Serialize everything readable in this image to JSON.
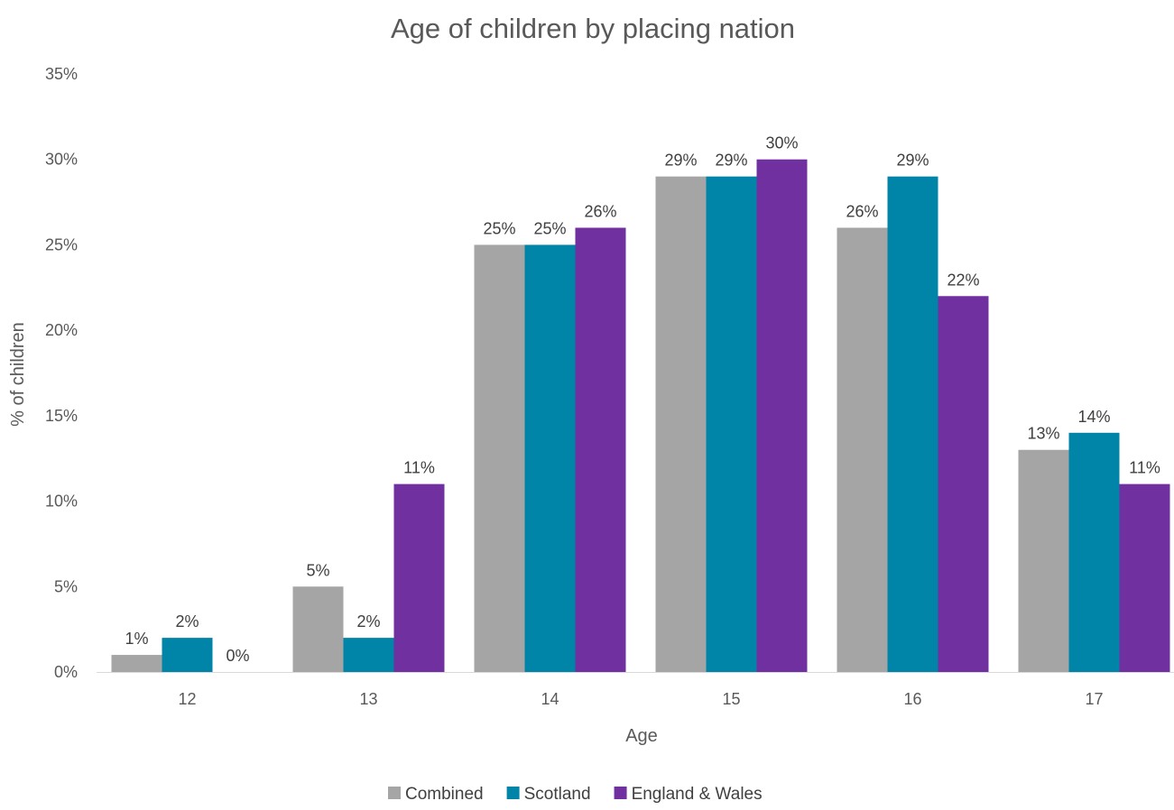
{
  "chart_data": {
    "type": "bar",
    "title": "Age of children by placing nation",
    "xlabel": "Age",
    "ylabel": "% of children",
    "categories": [
      "12",
      "13",
      "14",
      "15",
      "16",
      "17"
    ],
    "series": [
      {
        "name": "Combined",
        "color": "#a5a5a5",
        "values": [
          1,
          5,
          25,
          29,
          26,
          13
        ]
      },
      {
        "name": "Scotland",
        "color": "#0085a8",
        "values": [
          2,
          2,
          25,
          29,
          29,
          14
        ]
      },
      {
        "name": "England & Wales",
        "color": "#7030a0",
        "values": [
          0,
          11,
          26,
          30,
          22,
          11
        ]
      }
    ],
    "ylim": [
      0,
      35
    ],
    "ytick_step": 5,
    "value_suffix": "%",
    "grid": false,
    "legend_position": "bottom"
  }
}
